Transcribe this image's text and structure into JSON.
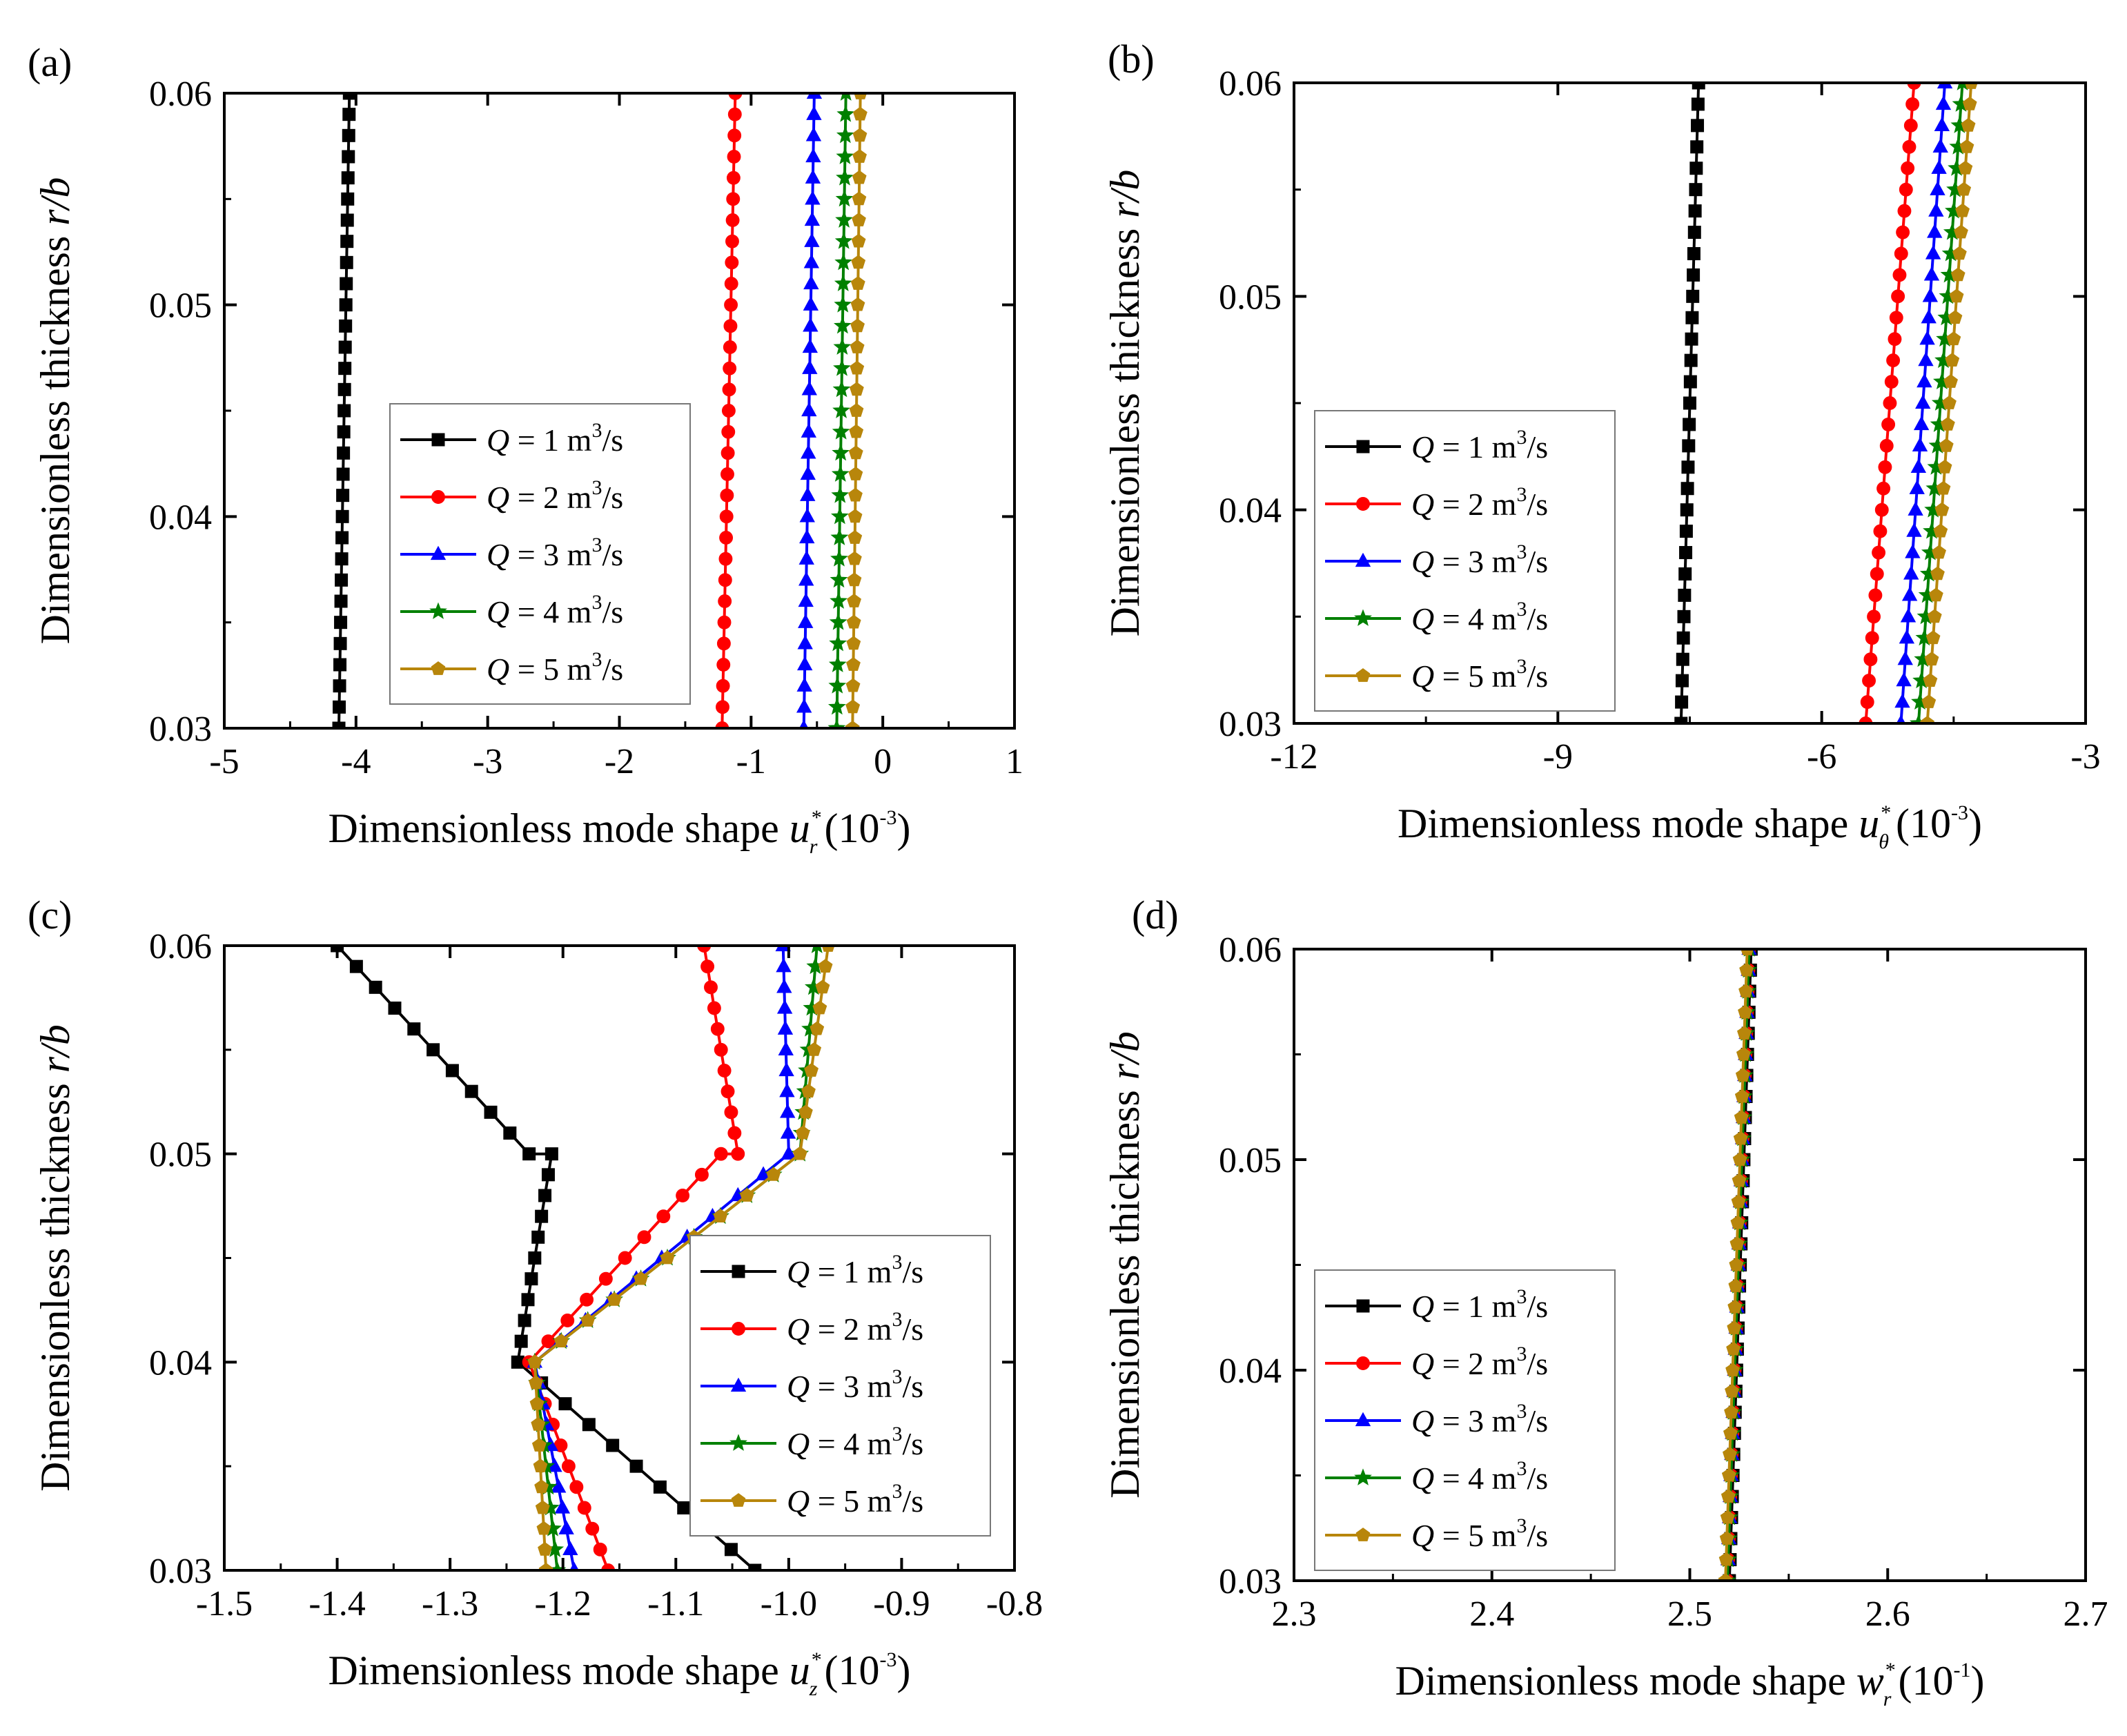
{
  "legend_entries": [
    {
      "q_symbol": "Q",
      "eq_text": " = 1 m",
      "sup": "3",
      "unit_tail": "/s",
      "color": "#000000",
      "marker": "square"
    },
    {
      "q_symbol": "Q",
      "eq_text": " = 2 m",
      "sup": "3",
      "unit_tail": "/s",
      "color": "#ff0000",
      "marker": "circle"
    },
    {
      "q_symbol": "Q",
      "eq_text": " = 3 m",
      "sup": "3",
      "unit_tail": "/s",
      "color": "#0000ff",
      "marker": "triangle"
    },
    {
      "q_symbol": "Q",
      "eq_text": " = 4 m",
      "sup": "3",
      "unit_tail": "/s",
      "color": "#008000",
      "marker": "star"
    },
    {
      "q_symbol": "Q",
      "eq_text": " = 5 m",
      "sup": "3",
      "unit_tail": "/s",
      "color": "#b8860b",
      "marker": "pentagon"
    }
  ],
  "chart_data": [
    {
      "panel": "(a)",
      "type": "line",
      "ylabel": "Dimensionless thickness r/b",
      "ylabel_main": "Dimensionless thickness ",
      "ylabel_var": "r/b",
      "xlabel_main": "Dimensionless mode shape ",
      "xlabel_var": "u",
      "xlabel_sub": "r",
      "xlabel_sup": "*",
      "xlabel_unit": "(10",
      "xlabel_unit_exp": "-3",
      "xlabel_unit_close": ")",
      "xlim": [
        -5,
        1
      ],
      "ylim": [
        0.03,
        0.06
      ],
      "xticks": [
        -5,
        -4,
        -3,
        -2,
        -1,
        0,
        1
      ],
      "xtick_labels": [
        "-5",
        "-4",
        "-3",
        "-2",
        "-1",
        "0",
        "1"
      ],
      "yticks": [
        0.03,
        0.04,
        0.05,
        0.06
      ],
      "ytick_labels": [
        "0.03",
        "0.04",
        "0.05",
        "0.06"
      ],
      "legend_position": "center-left",
      "series": [
        {
          "name": "Q = 1 m3/s",
          "points": [
            [
              -4.13,
              0.03
            ],
            [
              -4.05,
              0.06
            ]
          ]
        },
        {
          "name": "Q = 2 m3/s",
          "points": [
            [
              -1.22,
              0.03
            ],
            [
              -1.12,
              0.06
            ]
          ]
        },
        {
          "name": "Q = 3 m3/s",
          "points": [
            [
              -0.6,
              0.03
            ],
            [
              -0.52,
              0.06
            ]
          ]
        },
        {
          "name": "Q = 4 m3/s",
          "points": [
            [
              -0.35,
              0.03
            ],
            [
              -0.28,
              0.06
            ]
          ]
        },
        {
          "name": "Q = 5 m3/s",
          "points": [
            [
              -0.23,
              0.03
            ],
            [
              -0.17,
              0.06
            ]
          ]
        }
      ]
    },
    {
      "panel": "(b)",
      "type": "line",
      "ylabel": "Dimensionless thickness r/b",
      "ylabel_main": "Dimensionless thickness ",
      "ylabel_var": "r/b",
      "xlabel_main": "Dimensionless mode shape ",
      "xlabel_var": "u",
      "xlabel_sub": "θ",
      "xlabel_sup": "*",
      "xlabel_unit": "(10",
      "xlabel_unit_exp": "-3",
      "xlabel_unit_close": ")",
      "xlim": [
        -12,
        -3
      ],
      "ylim": [
        0.03,
        0.06
      ],
      "xticks": [
        -12,
        -9,
        -6,
        -3
      ],
      "xtick_labels": [
        "-12",
        "-9",
        "-6",
        "-3"
      ],
      "yticks": [
        0.03,
        0.04,
        0.05,
        0.06
      ],
      "ytick_labels": [
        "0.03",
        "0.04",
        "0.05",
        "0.06"
      ],
      "legend_position": "bottom-left",
      "series": [
        {
          "name": "Q = 1 m3/s",
          "points": [
            [
              -7.6,
              0.03
            ],
            [
              -7.4,
              0.06
            ]
          ]
        },
        {
          "name": "Q = 2 m3/s",
          "points": [
            [
              -5.5,
              0.03
            ],
            [
              -4.95,
              0.06
            ]
          ]
        },
        {
          "name": "Q = 3 m3/s",
          "points": [
            [
              -5.1,
              0.03
            ],
            [
              -4.6,
              0.06
            ]
          ]
        },
        {
          "name": "Q = 4 m3/s",
          "points": [
            [
              -4.9,
              0.03
            ],
            [
              -4.4,
              0.06
            ]
          ]
        },
        {
          "name": "Q = 5 m3/s",
          "points": [
            [
              -4.8,
              0.03
            ],
            [
              -4.3,
              0.06
            ]
          ]
        }
      ]
    },
    {
      "panel": "(c)",
      "type": "line",
      "ylabel": "Dimensionless thickness r/b",
      "ylabel_main": "Dimensionless thickness ",
      "ylabel_var": "r/b",
      "xlabel_main": "Dimensionless mode shape ",
      "xlabel_var": "u",
      "xlabel_sub": "z",
      "xlabel_sup": "*",
      "xlabel_unit": "(10",
      "xlabel_unit_exp": "-3",
      "xlabel_unit_close": ")",
      "xlim": [
        -1.5,
        -0.8
      ],
      "ylim": [
        0.03,
        0.06
      ],
      "xticks": [
        -1.5,
        -1.4,
        -1.3,
        -1.2,
        -1.1,
        -1.0,
        -0.9,
        -0.8
      ],
      "xtick_labels": [
        "-1.5",
        "-1.4",
        "-1.3",
        "-1.2",
        "-1.1",
        "-1.0",
        "-0.9",
        "-0.8"
      ],
      "yticks": [
        0.03,
        0.04,
        0.05,
        0.06
      ],
      "ytick_labels": [
        "0.03",
        "0.04",
        "0.05",
        "0.06"
      ],
      "legend_position": "center-right",
      "series": [
        {
          "name": "Q = 1 m3/s",
          "points": [
            [
              -1.03,
              0.03
            ],
            [
              -1.24,
              0.04
            ],
            [
              -1.21,
              0.05
            ],
            [
              -1.23,
              0.05
            ],
            [
              -1.4,
              0.06
            ]
          ]
        },
        {
          "name": "Q = 2 m3/s",
          "points": [
            [
              -1.16,
              0.03
            ],
            [
              -1.23,
              0.04
            ],
            [
              -1.06,
              0.05
            ],
            [
              -1.045,
              0.05
            ],
            [
              -1.075,
              0.06
            ]
          ]
        },
        {
          "name": "Q = 3 m3/s",
          "points": [
            [
              -1.19,
              0.03
            ],
            [
              -1.225,
              0.04
            ],
            [
              -1.0,
              0.05
            ],
            [
              -1.005,
              0.06
            ]
          ]
        },
        {
          "name": "Q = 4 m3/s",
          "points": [
            [
              -1.205,
              0.03
            ],
            [
              -1.225,
              0.04
            ],
            [
              -0.99,
              0.05
            ],
            [
              -0.975,
              0.06
            ]
          ]
        },
        {
          "name": "Q = 5 m3/s",
          "points": [
            [
              -1.215,
              0.03
            ],
            [
              -1.225,
              0.04
            ],
            [
              -0.99,
              0.05
            ],
            [
              -0.965,
              0.06
            ]
          ]
        }
      ]
    },
    {
      "panel": "(d)",
      "type": "line",
      "ylabel": "Dimensionless thickness r/b",
      "ylabel_main": "Dimensionless thickness ",
      "ylabel_var": "r/b",
      "xlabel_main": "Dimensionless mode shape ",
      "xlabel_var": "w",
      "xlabel_sub": "r",
      "xlabel_sup": "*",
      "xlabel_unit": "(10",
      "xlabel_unit_exp": "-1",
      "xlabel_unit_close": ")",
      "xlim": [
        2.3,
        2.7
      ],
      "ylim": [
        0.03,
        0.06
      ],
      "xticks": [
        2.3,
        2.4,
        2.5,
        2.6,
        2.7
      ],
      "xtick_labels": [
        "2.3",
        "2.4",
        "2.5",
        "2.6",
        "2.7"
      ],
      "yticks": [
        0.03,
        0.04,
        0.05,
        0.06
      ],
      "ytick_labels": [
        "0.03",
        "0.04",
        "0.05",
        "0.06"
      ],
      "legend_position": "bottom-left",
      "series": [
        {
          "name": "Q = 1 m3/s",
          "points": [
            [
              2.52,
              0.03
            ],
            [
              2.531,
              0.06
            ]
          ]
        },
        {
          "name": "Q = 2 m3/s",
          "points": [
            [
              2.519,
              0.03
            ],
            [
              2.53,
              0.06
            ]
          ]
        },
        {
          "name": "Q = 3 m3/s",
          "points": [
            [
              2.519,
              0.03
            ],
            [
              2.53,
              0.06
            ]
          ]
        },
        {
          "name": "Q = 4 m3/s",
          "points": [
            [
              2.519,
              0.03
            ],
            [
              2.53,
              0.06
            ]
          ]
        },
        {
          "name": "Q = 5 m3/s",
          "points": [
            [
              2.518,
              0.03
            ],
            [
              2.529,
              0.06
            ]
          ]
        }
      ]
    }
  ]
}
